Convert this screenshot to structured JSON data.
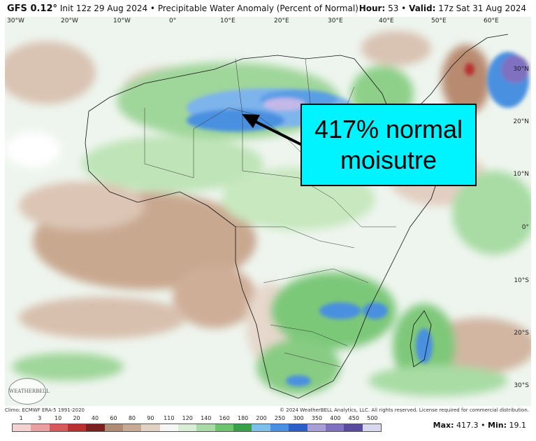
{
  "header": {
    "model": "GFS 0.12°",
    "init": "Init 12z 29 Aug 2024",
    "sep": "•",
    "product": "Precipitable Water Anomaly (Percent of Normal)",
    "hour_label": "Hour:",
    "hour": "53",
    "valid_label": "Valid:",
    "valid": "17z Sat 31 Aug 2024"
  },
  "lon_labels": [
    "30°W",
    "20°W",
    "10°W",
    "0°",
    "10°E",
    "20°E",
    "30°E",
    "40°E",
    "50°E",
    "60°E"
  ],
  "lat_labels": [
    "30°N",
    "20°N",
    "10°N",
    "0°",
    "10°S",
    "20°S",
    "30°S"
  ],
  "callout": {
    "line1": "417% normal",
    "line2": "moisutre",
    "background": "#00f4ff"
  },
  "logo": "WEATHERBELL",
  "footer": {
    "clim": "Climo: ECMWF ERA-5 1991-2020",
    "copyright": "© 2024 WeatherBELL Analytics, LLC. All rights reserved. License required for commercial distribution."
  },
  "colorbar": {
    "labels": [
      "1",
      "3",
      "10",
      "20",
      "40",
      "60",
      "80",
      "90",
      "110",
      "120",
      "140",
      "160",
      "180",
      "200",
      "250",
      "300",
      "350",
      "400",
      "450",
      "500"
    ],
    "colors": [
      "#f5d2d2",
      "#eaa0a0",
      "#d65a5a",
      "#b83030",
      "#7a2020",
      "#b08a72",
      "#c8aa92",
      "#e2d2c4",
      "#f6f6f6",
      "#d8efd6",
      "#a8dca4",
      "#6cc46c",
      "#38a048",
      "#7ec0ec",
      "#4a90e0",
      "#2c5ec8",
      "#a89ed8",
      "#8070c0",
      "#5a4aa0",
      "#d8d8ee"
    ]
  },
  "stats": {
    "max_label": "Max:",
    "max": "417.3",
    "min_label": "Min:",
    "min": "19.1"
  }
}
